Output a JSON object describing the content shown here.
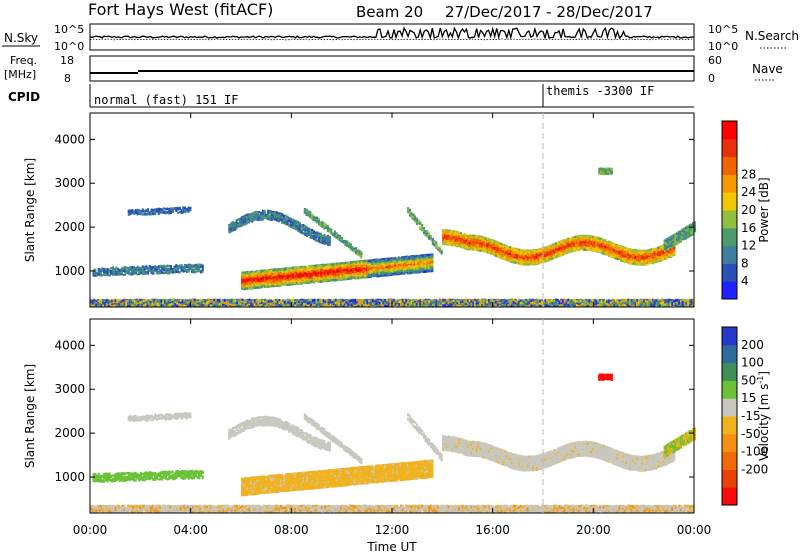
{
  "header": {
    "station": "Fort Hays West (fitACF)",
    "beam": "Beam 20",
    "date_range": "27/Dec/2017 - 28/Dec/2017"
  },
  "top_panels": {
    "nsky_label": "N.Sky",
    "nsky_ticks": [
      "10^5",
      "10^0"
    ],
    "nsearch_ticks": [
      "10^5",
      "10^0"
    ],
    "nsearch_label": "N.Search",
    "freq_label": "Freq.",
    "freq_unit": "[MHz]",
    "freq_ticks": [
      "18",
      "8"
    ],
    "nave_ticks": [
      "60",
      "0"
    ],
    "nave_label": "Nave",
    "cpid_label": "CPID",
    "cpid_mode_1": "normal (fast) 151 IF",
    "cpid_mode_2": "themis -3300 IF",
    "cpid_change_hour": 18
  },
  "chart_data": [
    {
      "type": "heatmap",
      "name": "power",
      "ylabel": "Slant Range [km]",
      "xlabel": "",
      "xlim": [
        0,
        24
      ],
      "ylim": [
        180,
        4600
      ],
      "y_ticks": [
        1000,
        2000,
        3000,
        4000
      ],
      "colorbar_label": "Power [dB]",
      "colorbar_ticks": [
        4,
        8,
        12,
        16,
        20,
        24,
        28
      ],
      "colorbar_colors": [
        "#1f23ff",
        "#2a4fb5",
        "#3e7fa0",
        "#4e9a6a",
        "#8fbf3c",
        "#f2c600",
        "#f59b00",
        "#f06400",
        "#e8300c",
        "#ff0000"
      ]
    },
    {
      "type": "heatmap",
      "name": "velocity",
      "ylabel": "Slant Range [km]",
      "xlabel": "Time UT",
      "xlim": [
        0,
        24
      ],
      "ylim": [
        180,
        4600
      ],
      "y_ticks": [
        1000,
        2000,
        3000,
        4000
      ],
      "x_ticks": [
        "00:00",
        "04:00",
        "08:00",
        "12:00",
        "16:00",
        "20:00",
        "00:00"
      ],
      "colorbar_label": "Velocity [m s^-1]",
      "colorbar_ticks": [
        "200",
        "100",
        "50",
        "15",
        "-15",
        "-50",
        "-100",
        "-200"
      ],
      "colorbar_colors": [
        "#2838c8",
        "#2f6a9c",
        "#3f8f56",
        "#6bc238",
        "#c8c8c0",
        "#f2b21c",
        "#f59012",
        "#f06a0a",
        "#e8420a",
        "#ff0a0a"
      ]
    }
  ],
  "colors": {
    "frame": "#000000",
    "gap": "#999999"
  }
}
